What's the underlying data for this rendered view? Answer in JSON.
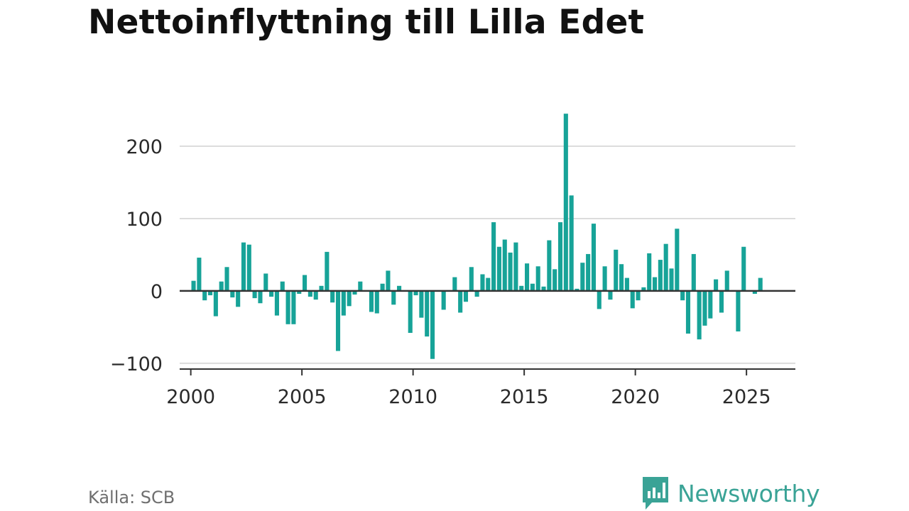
{
  "title": "Nettoinflyttning till Lilla Edet",
  "source": "Källa: SCB",
  "brand": "Newsworthy",
  "colors": {
    "bar": "#17a398",
    "grid": "#dcdcdc",
    "zero": "#333333",
    "brand": "#3aa396"
  },
  "chart_data": {
    "type": "bar",
    "title": "Nettoinflyttning till Lilla Edet",
    "xlabel": "",
    "ylabel": "",
    "xlim": [
      1999.5,
      2027.2
    ],
    "ylim": [
      -108,
      255
    ],
    "x_ticks": [
      2000,
      2005,
      2010,
      2015,
      2020,
      2025
    ],
    "x_tick_labels": [
      "2000",
      "2005",
      "2010",
      "2015",
      "2020",
      "2025"
    ],
    "y_ticks": [
      -100,
      0,
      100,
      200
    ],
    "y_tick_labels": [
      "−100",
      "0",
      "100",
      "200"
    ],
    "grid": true,
    "series": [
      {
        "start": "2000-Q1",
        "frequency": "quarterly",
        "values": [
          14,
          46,
          -13,
          -6,
          -35,
          13,
          33,
          -9,
          -22,
          67,
          64,
          -10,
          -17,
          24,
          -8,
          -34,
          13,
          -46,
          -46,
          -4,
          22,
          -8,
          -12,
          7,
          54,
          -16,
          -83,
          -34,
          -21,
          -5,
          13,
          0,
          -29,
          -31,
          10,
          28,
          -19,
          7,
          0,
          -58,
          -6,
          -37,
          -63,
          -94,
          0,
          -26,
          0,
          19,
          -30,
          -15,
          33,
          -8,
          23,
          18,
          95,
          61,
          71,
          53,
          67,
          7,
          38,
          10,
          34,
          6,
          70,
          30,
          95,
          245,
          132,
          3,
          39,
          51,
          93,
          -25,
          34,
          -12,
          57,
          37,
          18,
          -24,
          -13,
          5,
          52,
          19,
          43,
          65,
          31,
          86,
          -13,
          -59,
          51,
          -67,
          -48,
          -38,
          16,
          -30,
          28,
          0,
          -56,
          61,
          0,
          -4,
          18
        ]
      }
    ]
  }
}
